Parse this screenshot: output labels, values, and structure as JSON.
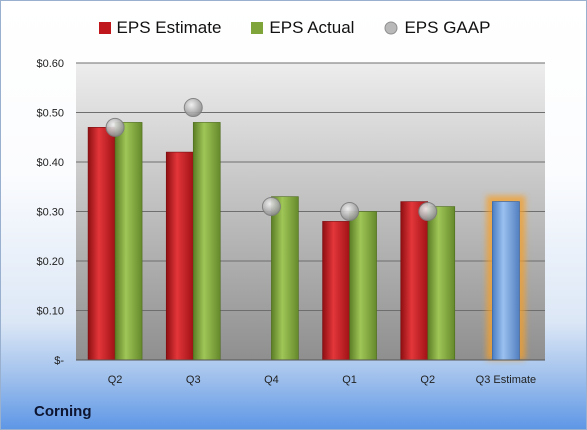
{
  "company": "Corning",
  "chart_data": {
    "type": "bar",
    "categories": [
      "Q2",
      "Q3",
      "Q4",
      "Q1",
      "Q2",
      "Q3 Estimate"
    ],
    "series": [
      {
        "name": "EPS Estimate",
        "type": "bar",
        "values": [
          0.47,
          0.42,
          null,
          0.28,
          0.32,
          null
        ]
      },
      {
        "name": "EPS Actual",
        "type": "bar",
        "values": [
          0.48,
          0.48,
          0.33,
          0.3,
          0.31,
          0.32
        ]
      },
      {
        "name": "EPS GAAP",
        "type": "scatter",
        "values": [
          0.47,
          0.51,
          0.31,
          0.3,
          0.3,
          null
        ]
      }
    ],
    "highlight_category": "Q3 Estimate",
    "y_ticks": [
      "$-",
      "$0.10",
      "$0.20",
      "$0.30",
      "$0.40",
      "$0.50",
      "$0.60"
    ],
    "ylim": [
      0,
      0.6
    ],
    "grid": true,
    "legend_position": "top",
    "colors": {
      "estimate": "#c0171c",
      "actual": "#7ea43a",
      "gaap": "#b4b4b4",
      "forecast": "#6f9fdc",
      "forecast_glow": "#f5a02a"
    }
  }
}
